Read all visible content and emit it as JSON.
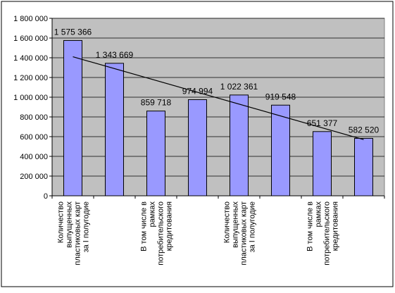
{
  "chart_data": {
    "type": "bar",
    "categories": [
      [
        "Количество",
        "выпущенных",
        "пластиковых карт",
        "за I полугодие"
      ],
      [],
      [
        "В том числе в",
        "рамках",
        "потребительского",
        "кредитования"
      ],
      [],
      [
        "Количество",
        "выпущенных",
        "пластиковых карт",
        "за I полугодие"
      ],
      [],
      [
        "В том числе в",
        "рамках",
        "потребительского",
        "кредитования"
      ],
      []
    ],
    "values": [
      1575366,
      1343669,
      859718,
      974994,
      1022361,
      919548,
      651377,
      582520
    ],
    "data_labels": [
      "1 575 366",
      "1 343 669",
      "859 718",
      "974 994",
      "1 022 361",
      "919 548",
      "651 377",
      "582 520"
    ],
    "y_ticks": [
      "0",
      "200 000",
      "400 000",
      "600 000",
      "800 000",
      "1 000 000",
      "1 200 000",
      "1 400 000",
      "1 600 000",
      "1 800 000"
    ],
    "ylim": [
      0,
      1800000
    ],
    "trendline": {
      "type": "linear",
      "start": 1410000,
      "end": 570000
    },
    "grid": true,
    "legend": "none",
    "title": "",
    "xlabel": "",
    "ylabel": "",
    "colors": {
      "bar_fill": "#9999ff",
      "bar_stroke": "#000000",
      "plot_background": "#c0c0c0",
      "gridline": "#000000",
      "trendline": "#000000"
    }
  }
}
